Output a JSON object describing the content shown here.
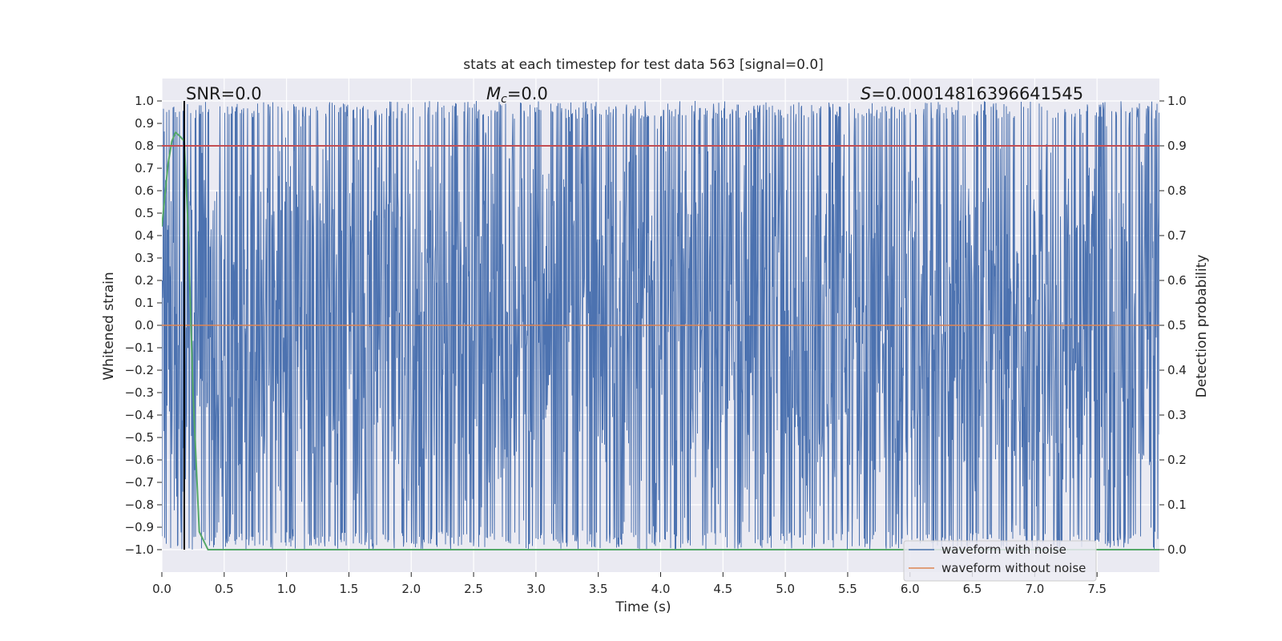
{
  "chart_data": {
    "type": "line",
    "title": "stats at each timestep for test data 563 [signal=0.0]",
    "xlabel": "Time (s)",
    "ylabel": "Whitened strain",
    "ylabel_right": "Detection probability",
    "xlim": [
      0.0,
      8.0
    ],
    "ylim": [
      -1.1,
      1.1
    ],
    "ylim_right": [
      -0.05,
      1.05
    ],
    "x_ticks": [
      "0.0",
      "0.5",
      "1.0",
      "1.5",
      "2.0",
      "2.5",
      "3.0",
      "3.5",
      "4.0",
      "4.5",
      "5.0",
      "5.5",
      "6.0",
      "6.5",
      "7.0",
      "7.5"
    ],
    "y_ticks": [
      "1.0",
      "0.9",
      "0.8",
      "0.7",
      "0.6",
      "0.5",
      "0.4",
      "0.3",
      "0.2",
      "0.1",
      "0.0",
      "−0.1",
      "−0.2",
      "−0.3",
      "−0.4",
      "−0.5",
      "−0.6",
      "−0.7",
      "−0.8",
      "−0.9",
      "−1.0"
    ],
    "y_ticks_right": [
      "1.0",
      "0.9",
      "0.8",
      "0.7",
      "0.6",
      "0.5",
      "0.4",
      "0.3",
      "0.2",
      "0.1",
      "0.0"
    ],
    "grid": true,
    "legend_position": "lower-right",
    "annotations": {
      "snr": "SNR=0.0",
      "mc_symbol": "M",
      "mc_sub": "c",
      "mc_value": "=0.0",
      "s_symbol": "S",
      "s_value": "=0.00014816396641545"
    },
    "series": [
      {
        "name": "waveform with noise",
        "color": "#4c72b0",
        "description_values": "dense noise spanning roughly -1.0 to 1.0 across 0–8 s"
      },
      {
        "name": "waveform without noise",
        "color": "#dd8452",
        "x": [
          0.0,
          8.0
        ],
        "values": [
          0.0,
          0.0
        ]
      },
      {
        "axis": "right",
        "color": "#55a868",
        "x": [
          0.0,
          0.05,
          0.08,
          0.11,
          0.15,
          0.18,
          0.21,
          0.25,
          0.3,
          0.37,
          0.4,
          1.0,
          8.0
        ],
        "values": [
          0.72,
          0.86,
          0.91,
          0.93,
          0.92,
          0.91,
          0.72,
          0.35,
          0.04,
          0.0,
          0.0,
          0.0,
          0.0
        ]
      },
      {
        "axis": "right",
        "color": "#c44e52",
        "x": [
          0.0,
          8.0
        ],
        "values": [
          0.9,
          0.9
        ]
      }
    ],
    "marker_x": 0.18,
    "marker_color": "#000000",
    "colors": {
      "plot_background": "#eaeaf2",
      "grid": "#ffffff"
    }
  }
}
